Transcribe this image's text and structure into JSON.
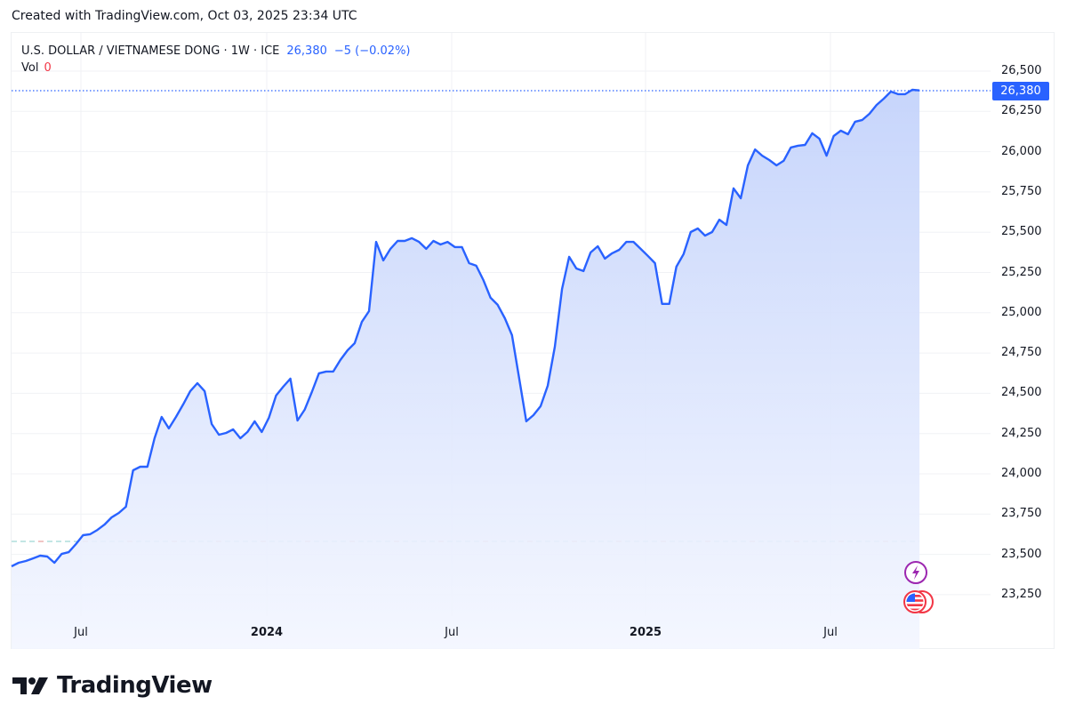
{
  "header": {
    "created_text": "Created with TradingView.com, Oct 03, 2025 23:34 UTC"
  },
  "legend": {
    "symbol": "U.S. DOLLAR / VIETNAMESE DONG · 1W · ICE",
    "last_price": "26,380",
    "change": "−5 (−0.02%)",
    "vol_label": "Vol",
    "vol_value": "0"
  },
  "price_tag": "26,380",
  "y_axis": {
    "labels": [
      "26,500",
      "26,250",
      "26,000",
      "25,750",
      "25,500",
      "25,250",
      "25,000",
      "24,750",
      "24,500",
      "24,250",
      "24,000",
      "23,750",
      "23,500",
      "23,250"
    ]
  },
  "x_axis": {
    "labels": [
      {
        "text": "Jul",
        "bold": false
      },
      {
        "text": "2024",
        "bold": true
      },
      {
        "text": "Jul",
        "bold": false
      },
      {
        "text": "2025",
        "bold": true
      },
      {
        "text": "Jul",
        "bold": false
      }
    ]
  },
  "events": {
    "earnings_icon": "lightning-event-icon",
    "economic_icon": "us-flag-event-icon"
  },
  "footer": {
    "logo_text": "TradingView"
  },
  "colors": {
    "line": "#2962ff",
    "area_top": "#c9d7fb",
    "area_bottom": "#f4f7ff",
    "grid": "#f0f2f5",
    "up_dash": "#9fd8d4",
    "down_dash": "#f7a9a7",
    "price_tag_bg": "#2962ff"
  },
  "chart_data": {
    "type": "area",
    "title": "U.S. DOLLAR / VIETNAMESE DONG · 1W · ICE",
    "xlabel": "",
    "ylabel": "",
    "ylim": [
      23100,
      26600
    ],
    "grid": true,
    "legend_position": "top-left",
    "last_value": 26380,
    "change": -5,
    "change_pct": -0.02,
    "x_tick_labels": [
      "Jul",
      "2024",
      "Jul",
      "2025",
      "Jul"
    ],
    "y_tick_labels": [
      26500,
      26250,
      26000,
      25750,
      25500,
      25250,
      25000,
      24750,
      24500,
      24250,
      24000,
      23750,
      23500,
      23250
    ],
    "series": [
      {
        "name": "USD/VND",
        "values": [
          23426,
          23448,
          23459,
          23475,
          23492,
          23487,
          23448,
          23503,
          23514,
          23564,
          23619,
          23625,
          23652,
          23685,
          23730,
          23757,
          23796,
          24022,
          24044,
          24044,
          24221,
          24353,
          24282,
          24353,
          24431,
          24514,
          24563,
          24514,
          24309,
          24243,
          24254,
          24276,
          24221,
          24260,
          24326,
          24260,
          24348,
          24486,
          24541,
          24591,
          24331,
          24398,
          24508,
          24624,
          24635,
          24635,
          24707,
          24767,
          24811,
          24944,
          25010,
          25440,
          25325,
          25397,
          25446,
          25446,
          25463,
          25440,
          25397,
          25446,
          25424,
          25440,
          25408,
          25408,
          25308,
          25292,
          25203,
          25093,
          25049,
          24966,
          24861,
          24596,
          24326,
          24364,
          24420,
          24547,
          24789,
          25148,
          25347,
          25275,
          25259,
          25374,
          25413,
          25336,
          25369,
          25391,
          25440,
          25440,
          25397,
          25353,
          25308,
          25055,
          25055,
          25286,
          25364,
          25501,
          25523,
          25479,
          25501,
          25578,
          25545,
          25772,
          25711,
          25915,
          26014,
          25975,
          25948,
          25915,
          25943,
          26026,
          26037,
          26042,
          26114,
          26081,
          25975,
          26097,
          26130,
          26108,
          26186,
          26197,
          26235,
          26290,
          26329,
          26373,
          26357,
          26357,
          26384,
          26380
        ]
      }
    ],
    "reference_line": 23580
  }
}
